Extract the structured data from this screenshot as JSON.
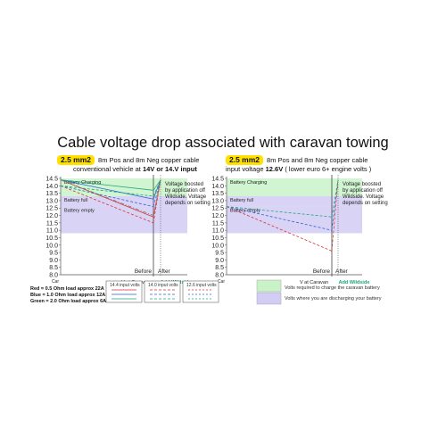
{
  "title": "Cable voltage drop associated with caravan towing",
  "colors": {
    "charging_band": "#c9f2c9",
    "discharging_band": "#d2cdf5",
    "red": "#d9322b",
    "blue": "#2d5fd6",
    "green": "#1aa77d",
    "grey": "#777777"
  },
  "panels": [
    {
      "cable": "2.5 mm2",
      "line1": "8m Pos and 8m Neg copper cable",
      "line2_pre": "conventional vehicle at ",
      "line2_bold": "14V or 14.V input",
      "line2_post": ""
    },
    {
      "cable": "2.5 mm2",
      "line1": "8m Pos and 8m Neg copper cable",
      "line2_pre": "input voltage ",
      "line2_bold": "12.6V",
      "line2_post": " ( lower euro 6+ engine volts )"
    }
  ],
  "legend": {
    "red": "Red    = 0.5 Ohm load approx 22A",
    "blue": "Blue  = 1.0 Ohm load approx 12A",
    "green": "Green = 2.0 Ohm load approx  6A",
    "box1": "14.4 input volts",
    "box2": "14.0 input volts",
    "box3": "12.6 input volts"
  },
  "shade_legend": {
    "charging": "Volts required to charge the caravan battery",
    "discharging": "Volts where you are discharging your battery"
  },
  "chart_data": [
    {
      "type": "line",
      "ylim": [
        8.0,
        14.5
      ],
      "yticks": [
        "14.5",
        "14.0",
        "13.5",
        "13.0",
        "12.5",
        "12.0",
        "11.5",
        "11.0",
        "10.5",
        "10.0",
        "9.5",
        "9.0",
        "8.5",
        "8.0"
      ],
      "xticks": [
        "Car",
        "V at Caravan",
        "Before",
        "After"
      ],
      "extra_label": "Add Wildside",
      "bands": [
        {
          "label": "Battery Charging",
          "from": 13.3,
          "to": 14.5,
          "kind": "charging"
        },
        {
          "label": "Battery full",
          "from": 12.6,
          "to": 13.3,
          "kind": "discharging"
        },
        {
          "label": "Battery empty",
          "from": 10.8,
          "to": 12.6,
          "kind": "discharging"
        }
      ],
      "annotation": "Voltage boosted\nby application off\nWildside. Voltage\ndepends on setting",
      "series": [
        {
          "color": "red",
          "style": "solid",
          "values": [
            14.4,
            11.9
          ],
          "after": 14.4
        },
        {
          "color": "red",
          "style": "dashed",
          "values": [
            14.0,
            11.5
          ],
          "after": 14.4
        },
        {
          "color": "blue",
          "style": "solid",
          "values": [
            14.4,
            13.1
          ],
          "after": 14.4
        },
        {
          "color": "blue",
          "style": "dashed",
          "values": [
            14.0,
            12.6
          ],
          "after": 14.4
        },
        {
          "color": "green",
          "style": "solid",
          "values": [
            14.4,
            13.7
          ],
          "after": 14.4
        },
        {
          "color": "green",
          "style": "dashed",
          "values": [
            14.0,
            13.3
          ],
          "after": 14.4
        },
        {
          "color": "grey",
          "style": "dashdot",
          "values": [
            14.4,
            12.0
          ],
          "after": 14.4
        }
      ]
    },
    {
      "type": "line",
      "ylim": [
        8.0,
        14.5
      ],
      "yticks": [
        "14.5",
        "14.0",
        "13.5",
        "13.0",
        "12.5",
        "12.0",
        "11.5",
        "11.0",
        "10.5",
        "10.0",
        "9.5",
        "9.0",
        "8.5",
        "8.0"
      ],
      "xticks": [
        "Car",
        "V at Caravan",
        "Before",
        "After"
      ],
      "extra_label": "Add Wildside",
      "bands": [
        {
          "label": "Battery Charging",
          "from": 13.3,
          "to": 14.5,
          "kind": "charging"
        },
        {
          "label": "Battery full",
          "from": 12.6,
          "to": 13.3,
          "kind": "discharging"
        },
        {
          "label": "Battery empty",
          "from": 10.8,
          "to": 12.6,
          "kind": "discharging"
        }
      ],
      "annotation": "Voltage boosted\nby application off\nWildside. Voltage\ndepends on setting",
      "series": [
        {
          "color": "red",
          "style": "dashed",
          "values": [
            12.6,
            9.6
          ],
          "after": 14.4
        },
        {
          "color": "blue",
          "style": "dashed",
          "values": [
            12.6,
            11.0
          ],
          "after": 14.4
        },
        {
          "color": "green",
          "style": "dashed",
          "values": [
            12.6,
            11.9
          ],
          "after": 14.4
        }
      ]
    }
  ]
}
